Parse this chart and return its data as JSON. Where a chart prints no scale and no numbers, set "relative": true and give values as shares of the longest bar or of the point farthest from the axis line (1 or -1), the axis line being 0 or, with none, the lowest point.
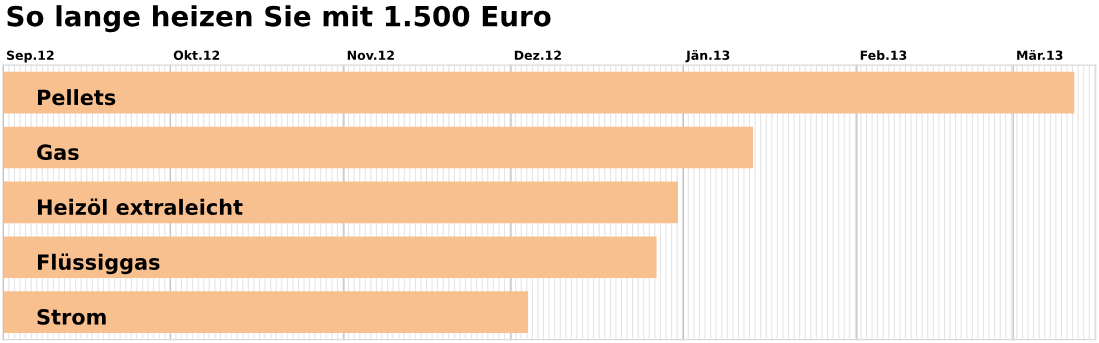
{
  "chart_data": {
    "type": "bar",
    "orientation": "horizontal",
    "relative": true,
    "title": "So lange heizen Sie mit 1.500 Euro",
    "categories": [
      "Pellets",
      "Gas",
      "Heizöl extraleicht",
      "Flüssiggas",
      "Strom"
    ],
    "values": [
      1,
      0.7,
      0.63,
      0.61,
      0.49
    ],
    "color": "#f8bf8f",
    "ref_lines": [
      {
        "axis": "x",
        "value": 0,
        "label": "Sep.12",
        "color": "#c4c4c4"
      },
      {
        "axis": "x",
        "value": 0.156,
        "label": "Okt.12",
        "color": "#c4c4c4"
      },
      {
        "axis": "x",
        "value": 0.318,
        "label": "Nov.12",
        "color": "#c4c4c4"
      },
      {
        "axis": "x",
        "value": 0.474,
        "label": "Dez.12",
        "color": "#c4c4c4"
      },
      {
        "axis": "x",
        "value": 0.635,
        "label": "Jän.13",
        "color": "#c4c4c4"
      },
      {
        "axis": "x",
        "value": 0.797,
        "label": "Feb.13",
        "color": "#c4c4c4"
      },
      {
        "axis": "x",
        "value": 0.943,
        "label": "Mär.13",
        "color": "#c4c4c4"
      }
    ],
    "grid": "x"
  }
}
